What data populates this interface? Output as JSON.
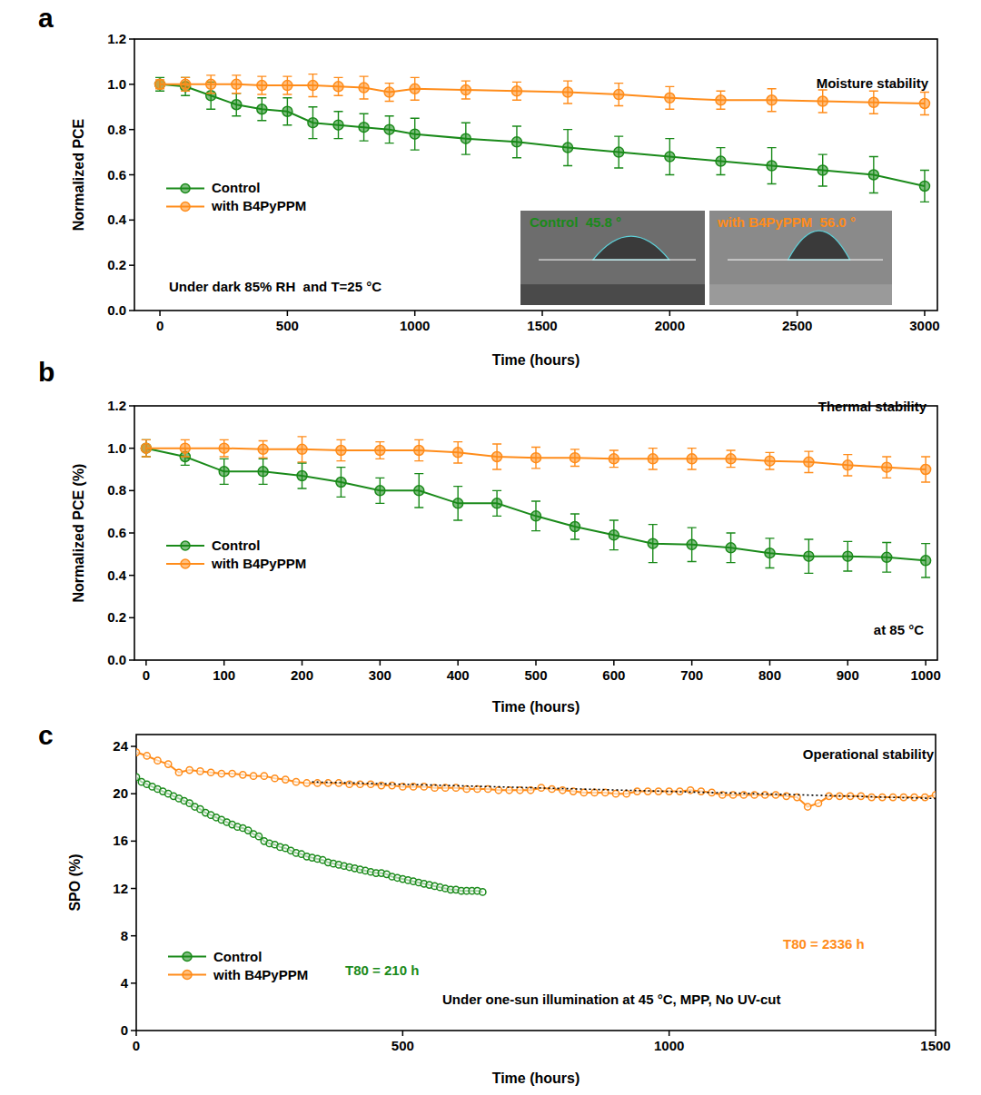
{
  "chart_data": [
    {
      "type": "line",
      "panel_label": "a",
      "x_label": "Time (hours)",
      "y_label": "Normalized PCE",
      "xlim": [
        -100,
        3050
      ],
      "ylim": [
        0,
        1.2
      ],
      "xticks": [
        0,
        500,
        1000,
        1500,
        2000,
        2500,
        3000
      ],
      "yticks": [
        {
          "value": 0,
          "label": "0.0"
        },
        0.2,
        0.4,
        0.6,
        0.8,
        {
          "value": 1,
          "label": "1.0"
        },
        1.2
      ],
      "legend": "center left",
      "annotations": [
        {
          "text": "Moisture stability"
        },
        {
          "text": "Under dark 85% RH  and T=25 °C"
        },
        {
          "text": "Control  45.8 °",
          "color": "#1a8a1a"
        },
        {
          "text": "with B4PyPPM  56.0 °",
          "color": "#ff8c1a"
        }
      ],
      "x": [
        0,
        100,
        200,
        300,
        400,
        500,
        600,
        700,
        800,
        900,
        1000,
        1200,
        1400,
        1600,
        1800,
        2000,
        2200,
        2400,
        2600,
        2800,
        3000
      ],
      "series": [
        {
          "name": "Control",
          "color": "#1a8a1a",
          "marker": "circle",
          "line_style": "solid",
          "values": [
            1.0,
            0.99,
            0.95,
            0.91,
            0.89,
            0.88,
            0.83,
            0.82,
            0.81,
            0.8,
            0.78,
            0.76,
            0.745,
            0.72,
            0.7,
            0.68,
            0.66,
            0.64,
            0.62,
            0.6,
            0.55
          ],
          "errors": [
            0.03,
            0.04,
            0.06,
            0.05,
            0.05,
            0.06,
            0.07,
            0.06,
            0.06,
            0.06,
            0.07,
            0.07,
            0.07,
            0.08,
            0.07,
            0.08,
            0.06,
            0.08,
            0.07,
            0.08,
            0.07
          ]
        },
        {
          "name": "with B4PyPPM",
          "color": "#ff8c1a",
          "marker": "circle",
          "line_style": "solid",
          "values": [
            1.0,
            1.0,
            1.0,
            1.0,
            0.995,
            0.995,
            0.995,
            0.99,
            0.985,
            0.965,
            0.98,
            0.975,
            0.97,
            0.965,
            0.955,
            0.94,
            0.93,
            0.93,
            0.925,
            0.92,
            0.915
          ],
          "errors": [
            0.02,
            0.03,
            0.04,
            0.04,
            0.04,
            0.04,
            0.05,
            0.04,
            0.05,
            0.04,
            0.05,
            0.04,
            0.04,
            0.05,
            0.05,
            0.05,
            0.04,
            0.05,
            0.05,
            0.05,
            0.05
          ]
        }
      ]
    },
    {
      "type": "line",
      "panel_label": "b",
      "x_label": "Time (hours)",
      "y_label": "Normalized PCE (%)",
      "xlim": [
        -15,
        1015
      ],
      "ylim": [
        0,
        1.2
      ],
      "xticks": [
        0,
        100,
        200,
        300,
        400,
        500,
        600,
        700,
        800,
        900,
        1000
      ],
      "yticks": [
        {
          "value": 0,
          "label": "0.0"
        },
        0.2,
        0.4,
        0.6,
        0.8,
        {
          "value": 1,
          "label": "1.0"
        },
        1.2
      ],
      "legend": "center left",
      "annotations": [
        {
          "text": "Thermal stability"
        },
        {
          "text": "at 85 °C"
        }
      ],
      "x": [
        0,
        50,
        100,
        150,
        200,
        250,
        300,
        350,
        400,
        450,
        500,
        550,
        600,
        650,
        700,
        750,
        800,
        850,
        900,
        950,
        1000
      ],
      "series": [
        {
          "name": "Control",
          "color": "#1a8a1a",
          "marker": "circle",
          "line_style": "solid",
          "values": [
            1.0,
            0.96,
            0.89,
            0.89,
            0.87,
            0.84,
            0.8,
            0.8,
            0.74,
            0.74,
            0.68,
            0.63,
            0.59,
            0.55,
            0.545,
            0.53,
            0.505,
            0.49,
            0.49,
            0.485,
            0.47
          ],
          "errors": [
            0.04,
            0.04,
            0.06,
            0.06,
            0.06,
            0.07,
            0.06,
            0.08,
            0.08,
            0.06,
            0.07,
            0.06,
            0.07,
            0.09,
            0.08,
            0.07,
            0.07,
            0.08,
            0.07,
            0.07,
            0.08
          ]
        },
        {
          "name": "with B4PyPPM",
          "color": "#ff8c1a",
          "marker": "circle",
          "line_style": "solid",
          "values": [
            1.0,
            1.0,
            1.0,
            0.995,
            0.995,
            0.99,
            0.99,
            0.99,
            0.98,
            0.96,
            0.955,
            0.955,
            0.95,
            0.95,
            0.95,
            0.95,
            0.94,
            0.935,
            0.92,
            0.91,
            0.9
          ],
          "errors": [
            0.04,
            0.04,
            0.04,
            0.04,
            0.06,
            0.05,
            0.04,
            0.05,
            0.05,
            0.06,
            0.05,
            0.04,
            0.04,
            0.05,
            0.05,
            0.04,
            0.04,
            0.05,
            0.05,
            0.05,
            0.06
          ]
        }
      ]
    },
    {
      "type": "line",
      "panel_label": "c",
      "x_label": "Time (hours)",
      "y_label": "SPO (%)",
      "xlim": [
        0,
        1500
      ],
      "ylim": [
        0,
        25
      ],
      "xticks": [
        0,
        500,
        1000,
        1500
      ],
      "yticks": [
        0,
        4,
        8,
        12,
        16,
        20,
        24
      ],
      "legend": "lower left",
      "annotations": [
        {
          "text": "Operational stability"
        },
        {
          "text": "Under one-sun illumination at 45 °C, MPP, No UV-cut"
        },
        {
          "text": "T80 = 2336 h",
          "color": "#ff8c1a"
        },
        {
          "text": "T80 = 210 h",
          "color": "#1a8a1a"
        }
      ],
      "series": [
        {
          "name": "Control",
          "color": "#1a8a1a",
          "marker": "circle",
          "line_style": "solid",
          "x": [
            0,
            10,
            20,
            30,
            40,
            50,
            60,
            70,
            80,
            90,
            100,
            110,
            120,
            130,
            140,
            150,
            160,
            170,
            180,
            190,
            200,
            210,
            220,
            230,
            240,
            250,
            260,
            270,
            280,
            290,
            300,
            310,
            320,
            330,
            340,
            350,
            360,
            370,
            380,
            390,
            400,
            410,
            420,
            430,
            440,
            450,
            460,
            470,
            480,
            490,
            500,
            510,
            520,
            530,
            540,
            550,
            560,
            570,
            580,
            590,
            600,
            610,
            620,
            630,
            640,
            650
          ],
          "values": [
            21.4,
            21.0,
            20.8,
            20.6,
            20.4,
            20.2,
            20.0,
            19.8,
            19.6,
            19.4,
            19.2,
            18.9,
            18.7,
            18.4,
            18.2,
            18.0,
            17.8,
            17.6,
            17.4,
            17.2,
            17.1,
            16.9,
            16.6,
            16.4,
            16.0,
            15.8,
            15.7,
            15.5,
            15.4,
            15.2,
            15.0,
            14.9,
            14.7,
            14.6,
            14.5,
            14.4,
            14.2,
            14.1,
            14.0,
            13.9,
            13.8,
            13.7,
            13.6,
            13.5,
            13.4,
            13.3,
            13.3,
            13.2,
            13.0,
            12.9,
            12.8,
            12.7,
            12.6,
            12.5,
            12.4,
            12.3,
            12.2,
            12.1,
            12.0,
            11.9,
            11.9,
            11.8,
            11.8,
            11.8,
            11.8,
            11.7
          ]
        },
        {
          "name": "with B4PyPPM",
          "color": "#ff8c1a",
          "marker": "circle",
          "line_style": "solid",
          "x": [
            0,
            20,
            40,
            60,
            80,
            100,
            120,
            140,
            160,
            180,
            200,
            220,
            240,
            260,
            280,
            300,
            320,
            340,
            360,
            380,
            400,
            420,
            440,
            460,
            480,
            500,
            520,
            540,
            560,
            580,
            600,
            620,
            640,
            660,
            680,
            700,
            720,
            740,
            760,
            780,
            800,
            820,
            840,
            860,
            880,
            900,
            920,
            940,
            960,
            980,
            1000,
            1020,
            1040,
            1060,
            1080,
            1100,
            1120,
            1140,
            1160,
            1180,
            1200,
            1220,
            1240,
            1260,
            1280,
            1300,
            1320,
            1340,
            1360,
            1380,
            1400,
            1420,
            1440,
            1460,
            1480,
            1500
          ],
          "values": [
            23.5,
            23.2,
            22.8,
            22.5,
            21.8,
            22.0,
            21.9,
            21.8,
            21.7,
            21.7,
            21.6,
            21.5,
            21.5,
            21.3,
            21.2,
            21.0,
            20.9,
            20.9,
            20.9,
            20.9,
            20.8,
            20.8,
            20.8,
            20.7,
            20.7,
            20.6,
            20.6,
            20.6,
            20.5,
            20.5,
            20.5,
            20.4,
            20.4,
            20.4,
            20.3,
            20.3,
            20.3,
            20.3,
            20.5,
            20.4,
            20.3,
            20.2,
            20.1,
            20.1,
            20.1,
            20.0,
            20.0,
            20.2,
            20.2,
            20.2,
            20.2,
            20.2,
            20.3,
            20.2,
            20.1,
            19.9,
            19.9,
            19.9,
            19.9,
            19.9,
            19.9,
            19.8,
            19.7,
            18.9,
            19.2,
            19.8,
            19.8,
            19.8,
            19.8,
            19.7,
            19.7,
            19.7,
            19.7,
            19.7,
            19.7,
            19.9
          ]
        },
        {
          "color": "#000000",
          "type": "line",
          "line_style": "dotted",
          "x": [
            330,
            1500
          ],
          "values": [
            21.0,
            19.6
          ]
        }
      ]
    }
  ]
}
